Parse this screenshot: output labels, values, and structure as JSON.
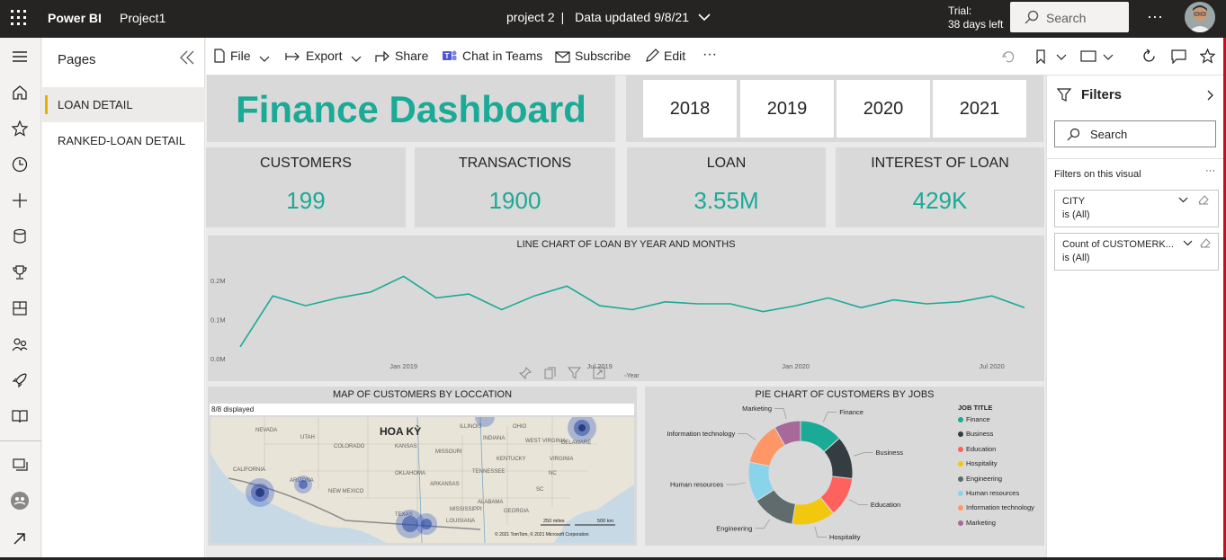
{
  "topbar": {
    "brand": "Power BI",
    "project": "Project1",
    "report_name": "project 2",
    "separator": "|",
    "data_updated": "Data updated 9/8/21",
    "trial_line1": "Trial:",
    "trial_line2": "38 days left",
    "search_placeholder": "Search",
    "more": "···"
  },
  "pages_pane": {
    "header": "Pages",
    "items": [
      {
        "label": "LOAN DETAIL",
        "selected": true
      },
      {
        "label": "RANKED-LOAN DETAIL",
        "selected": false
      }
    ]
  },
  "toolbar": {
    "file": "File",
    "export": "Export",
    "share": "Share",
    "chat": "Chat in Teams",
    "subscribe": "Subscribe",
    "edit": "Edit",
    "more": "···"
  },
  "dashboard": {
    "title": "Finance Dashboard",
    "years": [
      "2018",
      "2019",
      "2020",
      "2021"
    ],
    "kpis": [
      {
        "label": "CUSTOMERS",
        "value": "199"
      },
      {
        "label": "TRANSACTIONS",
        "value": "1900"
      },
      {
        "label": "LOAN",
        "value": "3.55M"
      },
      {
        "label": "INTEREST OF LOAN",
        "value": "429K"
      }
    ],
    "accent_color": "#1aaa96"
  },
  "chart_data": [
    {
      "type": "line",
      "title": "LINE CHART OF LOAN BY YEAR AND MONTHS",
      "y_ticks": [
        "0.0M",
        "0.1M",
        "0.2M"
      ],
      "x_ticks": [
        "Jan 2019",
        "Jul 2019",
        "Jan 2020",
        "Jul 2020"
      ],
      "x_axis_label": "Year",
      "ylim": [
        0,
        0.25
      ],
      "series": [
        {
          "values": [
            0.03,
            0.16,
            0.135,
            0.155,
            0.17,
            0.21,
            0.155,
            0.165,
            0.125,
            0.16,
            0.185,
            0.135,
            0.125,
            0.145,
            0.14,
            0.14,
            0.12,
            0.135,
            0.155,
            0.13,
            0.15,
            0.14,
            0.145,
            0.16,
            0.13
          ]
        }
      ],
      "color": "#1aaa96"
    },
    {
      "type": "pie",
      "title": "PIE CHART OF CUSTOMERS BY JOBS",
      "legend_title": "JOB TITLE",
      "legend_position": "right",
      "slices": [
        {
          "label": "Finance",
          "value": 13,
          "color": "#1aaa96"
        },
        {
          "label": "Business",
          "value": 13,
          "color": "#333d42"
        },
        {
          "label": "Education",
          "value": 12,
          "color": "#fd625e"
        },
        {
          "label": "Hospitality",
          "value": 13,
          "color": "#f2c80f"
        },
        {
          "label": "Engineering",
          "value": 13,
          "color": "#5f6b6d"
        },
        {
          "label": "Human resources",
          "value": 12,
          "color": "#8ad4eb"
        },
        {
          "label": "Information technology",
          "value": 13,
          "color": "#fe9666"
        },
        {
          "label": "Marketing",
          "value": 8,
          "color": "#a66999"
        }
      ]
    }
  ],
  "map": {
    "title": "MAP OF CUSTOMERS BY LOCCATION",
    "displayed": "8/8 displayed",
    "country_label": "HOA KỲ",
    "states": [
      "NEVADA",
      "UTAH",
      "COLORADO",
      "KANSAS",
      "MISSOURI",
      "ILLINOIS",
      "INDIANA",
      "OHIO",
      "WEST VIRGINIA",
      "VIRGINIA",
      "KENTUCKY",
      "TENNESSEE",
      "OKLAHOMA",
      "ARKANSAS",
      "NEW MEXICO",
      "TEXAS",
      "LOUISIANA",
      "MISSISSIPPI",
      "ALABAMA",
      "GEORGIA",
      "SC",
      "NC",
      "CALIFORNIA",
      "ARIZONA",
      "DELAWARE"
    ],
    "scale_1": "250 miles",
    "scale_2": "500 km",
    "credit": "© 2021 TomTom, © 2021 Microsoft Corporation"
  },
  "filters": {
    "title": "Filters",
    "search_placeholder": "Search",
    "section": "Filters on this visual",
    "more": "···",
    "cards": [
      {
        "name": "CITY",
        "value": "is (All)"
      },
      {
        "name": "Count of CUSTOMERK...",
        "value": "is (All)"
      }
    ]
  }
}
